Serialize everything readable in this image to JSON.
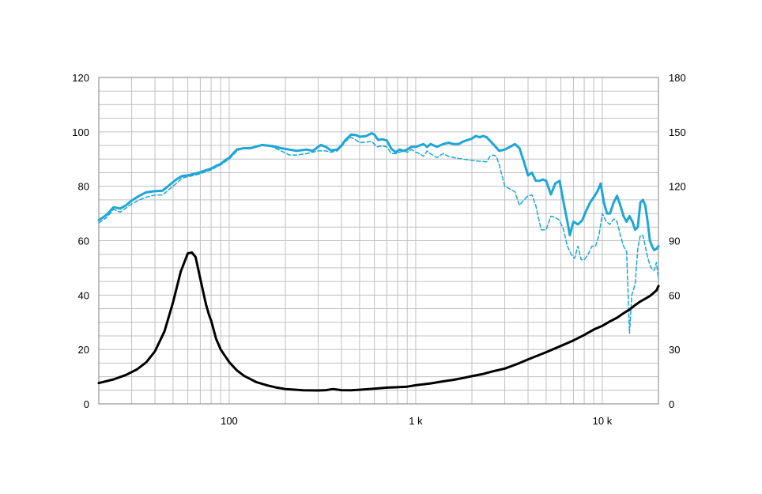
{
  "chart_data": {
    "type": "line",
    "title": "",
    "xlabel": "",
    "ylabel": "",
    "x_scale": "log",
    "xlim": [
      20,
      20000
    ],
    "ylim_left": [
      0,
      120
    ],
    "ylim_right": [
      0,
      180
    ],
    "grid": true,
    "legend": "none",
    "x_ticks": [
      {
        "value": 100,
        "label": "100"
      },
      {
        "value": 1000,
        "label": "1 k"
      },
      {
        "value": 10000,
        "label": "10 k"
      }
    ],
    "y_ticks_left": [
      {
        "value": 0,
        "label": "0"
      },
      {
        "value": 20,
        "label": "20"
      },
      {
        "value": 40,
        "label": "40"
      },
      {
        "value": 60,
        "label": "60"
      },
      {
        "value": 80,
        "label": "80"
      },
      {
        "value": 100,
        "label": "100"
      },
      {
        "value": 120,
        "label": "120"
      }
    ],
    "y_ticks_right": [
      {
        "value": 0,
        "label": "0"
      },
      {
        "value": 30,
        "label": "30"
      },
      {
        "value": 60,
        "label": "60"
      },
      {
        "value": 90,
        "label": "90"
      },
      {
        "value": 120,
        "label": "120"
      },
      {
        "value": 150,
        "label": "150"
      },
      {
        "value": 180,
        "label": "180"
      }
    ],
    "colors": {
      "spl": "#1ea7d6",
      "impedance": "#000000",
      "grid": "#c0c0c0"
    },
    "series": [
      {
        "style": "solid-thick",
        "color": "#1ea7d6",
        "axis": "left",
        "points": [
          [
            20,
            67.5
          ],
          [
            22,
            69.5
          ],
          [
            24,
            72.3
          ],
          [
            26,
            71.8
          ],
          [
            28,
            73
          ],
          [
            30,
            74.8
          ],
          [
            33,
            76.5
          ],
          [
            36,
            77.8
          ],
          [
            40,
            78.2
          ],
          [
            44,
            78.4
          ],
          [
            48,
            80.5
          ],
          [
            52,
            82.5
          ],
          [
            56,
            83.8
          ],
          [
            60,
            84
          ],
          [
            65,
            84.6
          ],
          [
            70,
            85.2
          ],
          [
            75,
            85.9
          ],
          [
            80,
            86.5
          ],
          [
            85,
            87.5
          ],
          [
            90,
            88.2
          ],
          [
            95,
            89.5
          ],
          [
            100,
            90.5
          ],
          [
            110,
            93.5
          ],
          [
            120,
            94
          ],
          [
            130,
            94
          ],
          [
            140,
            94.6
          ],
          [
            150,
            95.2
          ],
          [
            170,
            94.8
          ],
          [
            190,
            94
          ],
          [
            210,
            93.5
          ],
          [
            230,
            93
          ],
          [
            260,
            93.5
          ],
          [
            280,
            93
          ],
          [
            300,
            94.5
          ],
          [
            310,
            95.2
          ],
          [
            330,
            94.5
          ],
          [
            350,
            93.2
          ],
          [
            380,
            93.5
          ],
          [
            400,
            95
          ],
          [
            420,
            97
          ],
          [
            450,
            99
          ],
          [
            480,
            98.8
          ],
          [
            500,
            98.2
          ],
          [
            540,
            98.4
          ],
          [
            580,
            99.5
          ],
          [
            600,
            99
          ],
          [
            630,
            97
          ],
          [
            660,
            97.3
          ],
          [
            700,
            96.8
          ],
          [
            740,
            93.8
          ],
          [
            780,
            92.5
          ],
          [
            820,
            93.5
          ],
          [
            860,
            93
          ],
          [
            900,
            93.5
          ],
          [
            950,
            94.5
          ],
          [
            1000,
            94.5
          ],
          [
            1050,
            95
          ],
          [
            1100,
            95.5
          ],
          [
            1150,
            94.5
          ],
          [
            1200,
            95.5
          ],
          [
            1300,
            94.5
          ],
          [
            1400,
            95.5
          ],
          [
            1500,
            96
          ],
          [
            1600,
            95.5
          ],
          [
            1700,
            95.5
          ],
          [
            1800,
            96.5
          ],
          [
            2000,
            97.5
          ],
          [
            2100,
            98.5
          ],
          [
            2200,
            98
          ],
          [
            2300,
            98.5
          ],
          [
            2400,
            98
          ],
          [
            2600,
            95.5
          ],
          [
            2800,
            93
          ],
          [
            3000,
            93.5
          ],
          [
            3200,
            94.5
          ],
          [
            3400,
            95.5
          ],
          [
            3600,
            94
          ],
          [
            3800,
            89
          ],
          [
            4000,
            84
          ],
          [
            4200,
            85
          ],
          [
            4400,
            82
          ],
          [
            4600,
            82
          ],
          [
            4800,
            82.5
          ],
          [
            5000,
            82
          ],
          [
            5300,
            77
          ],
          [
            5600,
            81
          ],
          [
            5900,
            82
          ],
          [
            6200,
            74
          ],
          [
            6500,
            67
          ],
          [
            6700,
            62
          ],
          [
            7000,
            67
          ],
          [
            7400,
            66
          ],
          [
            7800,
            67.5
          ],
          [
            8200,
            71
          ],
          [
            8600,
            74
          ],
          [
            9000,
            76
          ],
          [
            9400,
            78
          ],
          [
            9800,
            81
          ],
          [
            10200,
            74
          ],
          [
            10600,
            70
          ],
          [
            11000,
            70
          ],
          [
            11500,
            74
          ],
          [
            12000,
            76.5
          ],
          [
            12500,
            73
          ],
          [
            13000,
            69
          ],
          [
            13500,
            67
          ],
          [
            14000,
            69
          ],
          [
            14500,
            67
          ],
          [
            15000,
            64
          ],
          [
            15500,
            65
          ],
          [
            16000,
            74
          ],
          [
            16500,
            75
          ],
          [
            17000,
            73
          ],
          [
            17500,
            67
          ],
          [
            18000,
            60
          ],
          [
            18500,
            58
          ],
          [
            19000,
            56.5
          ],
          [
            19500,
            57
          ],
          [
            20000,
            58
          ]
        ]
      },
      {
        "style": "dashed",
        "color": "#1ea7d6",
        "axis": "left",
        "points": [
          [
            20,
            66.5
          ],
          [
            22,
            68.5
          ],
          [
            24,
            71.5
          ],
          [
            26,
            70.5
          ],
          [
            28,
            72
          ],
          [
            30,
            73.5
          ],
          [
            33,
            75
          ],
          [
            36,
            76
          ],
          [
            40,
            76.8
          ],
          [
            44,
            76.8
          ],
          [
            48,
            79
          ],
          [
            52,
            81
          ],
          [
            56,
            83
          ],
          [
            60,
            83.5
          ],
          [
            65,
            84
          ],
          [
            70,
            84.6
          ],
          [
            75,
            85.4
          ],
          [
            80,
            86
          ],
          [
            85,
            87
          ],
          [
            90,
            87.8
          ],
          [
            95,
            89
          ],
          [
            100,
            90
          ],
          [
            110,
            93
          ],
          [
            120,
            94
          ],
          [
            130,
            94
          ],
          [
            140,
            94.5
          ],
          [
            150,
            95
          ],
          [
            170,
            94.5
          ],
          [
            190,
            93
          ],
          [
            210,
            91.5
          ],
          [
            230,
            91.5
          ],
          [
            260,
            92
          ],
          [
            280,
            92.5
          ],
          [
            300,
            93
          ],
          [
            330,
            93
          ],
          [
            350,
            92.5
          ],
          [
            380,
            93
          ],
          [
            400,
            94.5
          ],
          [
            420,
            96.5
          ],
          [
            450,
            98
          ],
          [
            480,
            97
          ],
          [
            500,
            96
          ],
          [
            540,
            96.2
          ],
          [
            580,
            96.5
          ],
          [
            620,
            94.5
          ],
          [
            660,
            94.8
          ],
          [
            700,
            94.5
          ],
          [
            740,
            92
          ],
          [
            780,
            92
          ],
          [
            820,
            92.5
          ],
          [
            860,
            93
          ],
          [
            900,
            92.5
          ],
          [
            950,
            93.5
          ],
          [
            1000,
            92.5
          ],
          [
            1050,
            92
          ],
          [
            1100,
            91
          ],
          [
            1150,
            93
          ],
          [
            1200,
            92
          ],
          [
            1300,
            90.5
          ],
          [
            1400,
            92
          ],
          [
            1500,
            91
          ],
          [
            1600,
            90.5
          ],
          [
            1800,
            90
          ],
          [
            2000,
            89.5
          ],
          [
            2200,
            89.2
          ],
          [
            2400,
            89
          ],
          [
            2500,
            91
          ],
          [
            2600,
            91.5
          ],
          [
            2700,
            91
          ],
          [
            2800,
            88
          ],
          [
            3000,
            80
          ],
          [
            3200,
            79
          ],
          [
            3400,
            78
          ],
          [
            3600,
            73
          ],
          [
            3800,
            75
          ],
          [
            4000,
            76.5
          ],
          [
            4200,
            76.8
          ],
          [
            4400,
            73
          ],
          [
            4700,
            64
          ],
          [
            5000,
            64
          ],
          [
            5300,
            69
          ],
          [
            5600,
            68.5
          ],
          [
            5900,
            67.5
          ],
          [
            6200,
            64
          ],
          [
            6500,
            58
          ],
          [
            6800,
            55
          ],
          [
            7100,
            53.5
          ],
          [
            7400,
            58
          ],
          [
            7700,
            53
          ],
          [
            8000,
            53
          ],
          [
            8400,
            55
          ],
          [
            8800,
            58
          ],
          [
            9200,
            58
          ],
          [
            9600,
            62
          ],
          [
            10000,
            70
          ],
          [
            10500,
            67
          ],
          [
            11000,
            66
          ],
          [
            11500,
            68
          ],
          [
            12000,
            67
          ],
          [
            12500,
            62
          ],
          [
            13000,
            58
          ],
          [
            13500,
            56
          ],
          [
            14000,
            26
          ],
          [
            14400,
            40
          ],
          [
            15000,
            44
          ],
          [
            15500,
            57
          ],
          [
            16000,
            62
          ],
          [
            16500,
            62
          ],
          [
            17000,
            58
          ],
          [
            17500,
            54
          ],
          [
            18000,
            51
          ],
          [
            18500,
            49.5
          ],
          [
            19000,
            49
          ],
          [
            19500,
            52
          ],
          [
            20000,
            46
          ]
        ]
      },
      {
        "style": "solid-thick",
        "color": "#000000",
        "axis": "right",
        "points": [
          [
            20,
            11.5
          ],
          [
            24,
            13.5
          ],
          [
            28,
            16
          ],
          [
            32,
            19
          ],
          [
            36,
            23
          ],
          [
            40,
            29
          ],
          [
            45,
            40
          ],
          [
            50,
            56
          ],
          [
            55,
            73
          ],
          [
            60,
            83
          ],
          [
            63,
            83.5
          ],
          [
            66,
            81
          ],
          [
            70,
            69
          ],
          [
            75,
            55
          ],
          [
            78,
            49
          ],
          [
            80,
            46
          ],
          [
            85,
            36
          ],
          [
            90,
            30
          ],
          [
            100,
            23
          ],
          [
            110,
            18.5
          ],
          [
            120,
            15.5
          ],
          [
            140,
            12
          ],
          [
            160,
            10.2
          ],
          [
            180,
            9
          ],
          [
            200,
            8.2
          ],
          [
            250,
            7.5
          ],
          [
            300,
            7.4
          ],
          [
            330,
            7.6
          ],
          [
            360,
            8.2
          ],
          [
            400,
            7.6
          ],
          [
            450,
            7.5
          ],
          [
            500,
            7.8
          ],
          [
            600,
            8.4
          ],
          [
            700,
            9
          ],
          [
            800,
            9.2
          ],
          [
            900,
            9.5
          ],
          [
            1000,
            10.3
          ],
          [
            1200,
            11.3
          ],
          [
            1400,
            12.4
          ],
          [
            1600,
            13.3
          ],
          [
            1800,
            14.3
          ],
          [
            2000,
            15.3
          ],
          [
            2300,
            16.5
          ],
          [
            2600,
            18
          ],
          [
            3000,
            19.5
          ],
          [
            3500,
            22
          ],
          [
            4000,
            24.5
          ],
          [
            5000,
            28.5
          ],
          [
            6000,
            32
          ],
          [
            7000,
            35
          ],
          [
            8000,
            38
          ],
          [
            9000,
            41
          ],
          [
            10000,
            43
          ],
          [
            11000,
            45.5
          ],
          [
            12000,
            47.5
          ],
          [
            13000,
            50
          ],
          [
            14000,
            52
          ],
          [
            15000,
            54.5
          ],
          [
            16000,
            56.5
          ],
          [
            17000,
            58
          ],
          [
            18000,
            59.5
          ],
          [
            19000,
            61.5
          ],
          [
            19500,
            62.5
          ],
          [
            20000,
            65
          ]
        ]
      }
    ]
  }
}
